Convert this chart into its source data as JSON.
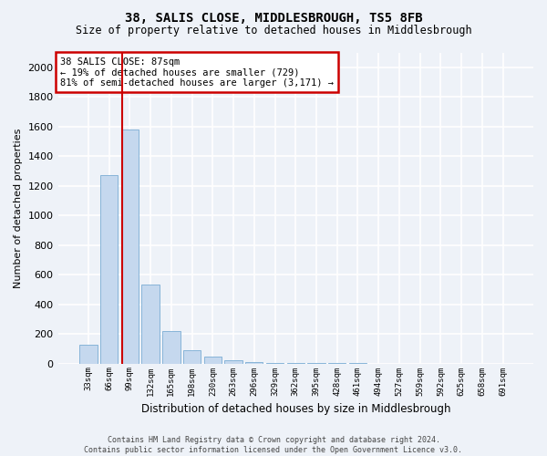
{
  "title": "38, SALIS CLOSE, MIDDLESBROUGH, TS5 8FB",
  "subtitle": "Size of property relative to detached houses in Middlesbrough",
  "xlabel": "Distribution of detached houses by size in Middlesbrough",
  "ylabel": "Number of detached properties",
  "bar_color": "#c5d8ee",
  "bar_edge_color": "#7aadd4",
  "categories": [
    "33sqm",
    "66sqm",
    "99sqm",
    "132sqm",
    "165sqm",
    "198sqm",
    "230sqm",
    "263sqm",
    "296sqm",
    "329sqm",
    "362sqm",
    "395sqm",
    "428sqm",
    "461sqm",
    "494sqm",
    "527sqm",
    "559sqm",
    "592sqm",
    "625sqm",
    "658sqm",
    "691sqm"
  ],
  "values": [
    130,
    1270,
    1580,
    535,
    220,
    90,
    50,
    25,
    10,
    5,
    5,
    5,
    2,
    2,
    0,
    0,
    0,
    0,
    0,
    0,
    0
  ],
  "ylim": [
    0,
    2100
  ],
  "yticks": [
    0,
    200,
    400,
    600,
    800,
    1000,
    1200,
    1400,
    1600,
    1800,
    2000
  ],
  "property_bin_index": 2.0,
  "annotation_title": "38 SALIS CLOSE: 87sqm",
  "annotation_line1": "← 19% of detached houses are smaller (729)",
  "annotation_line2": "81% of semi-detached houses are larger (3,171) →",
  "vline_color": "#cc0000",
  "annotation_box_color": "#ffffff",
  "annotation_box_edge": "#cc0000",
  "footer_line1": "Contains HM Land Registry data © Crown copyright and database right 2024.",
  "footer_line2": "Contains public sector information licensed under the Open Government Licence v3.0.",
  "background_color": "#eef2f8",
  "grid_color": "#ffffff",
  "plot_bg_color": "#eef2f8"
}
